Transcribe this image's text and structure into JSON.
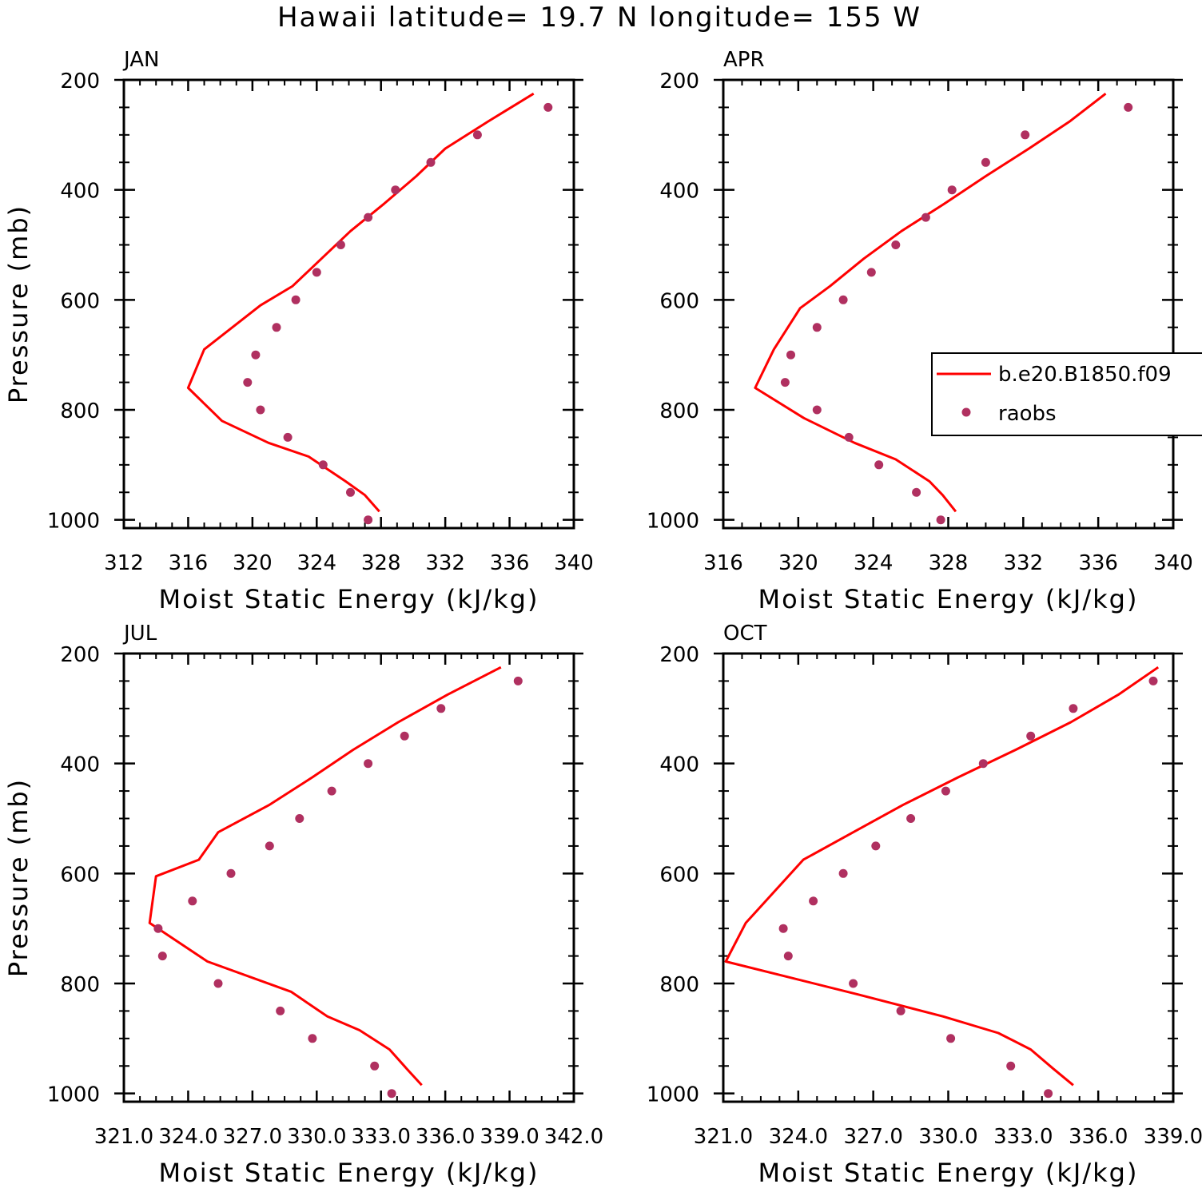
{
  "figure_title": "Hawaii  latitude= 19.7 N longitude= 155 W",
  "legend": {
    "model_label": "b.e20.B1850.f09",
    "obs_label": "raobs"
  },
  "colors": {
    "model_line": "#ff0000",
    "obs_marker": "#b03060",
    "axis": "#000000"
  },
  "chart_data": [
    {
      "type": "line",
      "panel": "JAN",
      "xlabel": "Moist Static Energy (kJ/kg)",
      "ylabel": "Pressure (mb)",
      "xlim": [
        312,
        340
      ],
      "ylim": [
        1015,
        200
      ],
      "y_reversed": true,
      "xticks": [
        "312",
        "316",
        "320",
        "324",
        "328",
        "332",
        "336",
        "340"
      ],
      "yticks": [
        "200",
        "400",
        "600",
        "800",
        "1000"
      ],
      "series": [
        {
          "name": "b.e20.B1850.f09",
          "x": [
            337.5,
            334.7,
            332.0,
            330.2,
            328.2,
            326.1,
            324.3,
            322.5,
            320.5,
            317.0,
            316.0,
            318.1,
            321.0,
            323.5,
            325.8,
            327.0,
            327.9
          ],
          "y": [
            225,
            275,
            325,
            375,
            425,
            475,
            525,
            575,
            610,
            690,
            760,
            820,
            860,
            885,
            930,
            955,
            985
          ]
        },
        {
          "name": "raobs",
          "x": [
            338.4,
            334.0,
            331.1,
            328.9,
            327.2,
            325.5,
            324.0,
            322.7,
            321.5,
            320.2,
            319.7,
            320.5,
            322.2,
            324.4,
            326.1,
            327.2
          ],
          "y": [
            250,
            300,
            350,
            400,
            450,
            500,
            550,
            600,
            650,
            700,
            750,
            800,
            850,
            900,
            950,
            1000
          ]
        }
      ]
    },
    {
      "type": "line",
      "panel": "APR",
      "xlabel": "Moist Static Energy (kJ/kg)",
      "ylabel": "",
      "xlim": [
        316,
        340
      ],
      "ylim": [
        1015,
        200
      ],
      "y_reversed": true,
      "xticks": [
        "316",
        "320",
        "324",
        "328",
        "332",
        "336",
        "340"
      ],
      "yticks": [
        "200",
        "400",
        "600",
        "800",
        "1000"
      ],
      "series": [
        {
          "name": "b.e20.B1850.f09",
          "x": [
            336.4,
            334.5,
            332.3,
            330.0,
            327.8,
            325.5,
            323.5,
            321.7,
            320.1,
            318.7,
            317.7,
            320.3,
            323.0,
            325.2,
            327.0,
            327.7,
            328.4
          ],
          "y": [
            225,
            275,
            325,
            375,
            425,
            475,
            525,
            575,
            615,
            690,
            760,
            815,
            860,
            890,
            930,
            955,
            985
          ]
        },
        {
          "name": "raobs",
          "x": [
            337.6,
            332.1,
            330.0,
            328.2,
            326.8,
            325.2,
            323.9,
            322.4,
            321.0,
            319.6,
            319.3,
            321.0,
            322.7,
            324.3,
            326.3,
            327.6
          ],
          "y": [
            250,
            300,
            350,
            400,
            450,
            500,
            550,
            600,
            650,
            700,
            750,
            800,
            850,
            900,
            950,
            1000
          ]
        }
      ]
    },
    {
      "type": "line",
      "panel": "JUL",
      "xlabel": "Moist Static Energy (kJ/kg)",
      "ylabel": "Pressure (mb)",
      "xlim": [
        321.0,
        342.0
      ],
      "ylim": [
        1015,
        200
      ],
      "y_reversed": true,
      "xticks": [
        "321.0",
        "324.0",
        "327.0",
        "330.0",
        "333.0",
        "336.0",
        "339.0",
        "342.0"
      ],
      "yticks": [
        "200",
        "400",
        "600",
        "800",
        "1000"
      ],
      "series": [
        {
          "name": "b.e20.B1850.f09",
          "x": [
            338.6,
            336.1,
            333.8,
            331.7,
            329.8,
            327.8,
            325.4,
            324.5,
            322.5,
            322.2,
            324.9,
            328.8,
            330.5,
            332.0,
            333.4,
            334.2,
            334.9
          ],
          "y": [
            225,
            275,
            325,
            375,
            425,
            475,
            525,
            575,
            605,
            690,
            760,
            815,
            860,
            885,
            920,
            955,
            985
          ]
        },
        {
          "name": "raobs",
          "x": [
            339.4,
            335.8,
            334.1,
            332.4,
            330.7,
            329.2,
            327.8,
            326.0,
            324.2,
            322.6,
            322.8,
            325.4,
            328.3,
            329.8,
            332.7,
            333.5
          ],
          "y": [
            250,
            300,
            350,
            400,
            450,
            500,
            550,
            600,
            650,
            700,
            750,
            800,
            850,
            900,
            950,
            1000
          ]
        }
      ]
    },
    {
      "type": "line",
      "panel": "OCT",
      "xlabel": "Moist Static Energy (kJ/kg)",
      "ylabel": "",
      "xlim": [
        321.0,
        339.0
      ],
      "ylim": [
        1015,
        200
      ],
      "y_reversed": true,
      "xticks": [
        "321.0",
        "324.0",
        "327.0",
        "330.0",
        "333.0",
        "336.0",
        "339.0"
      ],
      "yticks": [
        "200",
        "400",
        "600",
        "800",
        "1000"
      ],
      "series": [
        {
          "name": "b.e20.B1850.f09",
          "x": [
            338.4,
            336.8,
            334.9,
            332.7,
            330.4,
            328.2,
            326.2,
            324.2,
            321.9,
            321.1,
            326.4,
            329.8,
            332.0,
            333.3,
            334.2,
            335.0
          ],
          "y": [
            225,
            275,
            325,
            375,
            425,
            475,
            525,
            575,
            690,
            760,
            820,
            860,
            890,
            920,
            955,
            985
          ]
        },
        {
          "name": "raobs",
          "x": [
            338.2,
            335.0,
            333.3,
            331.4,
            329.9,
            328.5,
            327.1,
            325.8,
            324.6,
            323.4,
            323.6,
            326.2,
            328.1,
            330.1,
            332.5,
            334.0
          ],
          "y": [
            250,
            300,
            350,
            400,
            450,
            500,
            550,
            600,
            650,
            700,
            750,
            800,
            850,
            900,
            950,
            1000
          ]
        }
      ]
    }
  ]
}
